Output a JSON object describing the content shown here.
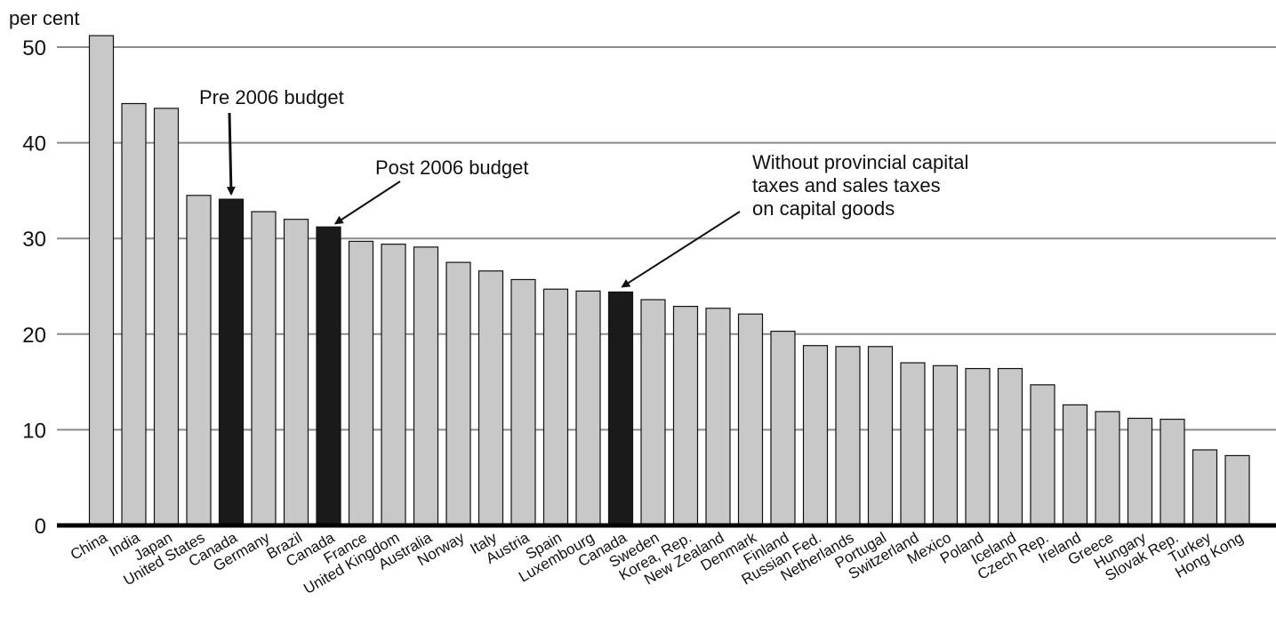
{
  "chart_data": {
    "type": "bar",
    "y_unit_label": "per cent",
    "ylim": [
      0,
      50
    ],
    "yticks": [
      0,
      10,
      20,
      30,
      40,
      50
    ],
    "grid": true,
    "categories": [
      "China",
      "India",
      "Japan",
      "United States",
      "Canada",
      "Germany",
      "Brazil",
      "Canada",
      "France",
      "United Kingdom",
      "Australia",
      "Norway",
      "Italy",
      "Austria",
      "Spain",
      "Luxembourg",
      "Canada",
      "Sweden",
      "Korea, Rep.",
      "New Zealand",
      "Denmark",
      "Finland",
      "Russian Fed.",
      "Netherlands",
      "Portugal",
      "Switzerland",
      "Mexico",
      "Poland",
      "Iceland",
      "Czech Rep.",
      "Ireland",
      "Greece",
      "Hungary",
      "Slovak Rep.",
      "Turkey",
      "Hong Kong"
    ],
    "values": [
      51.2,
      44.1,
      43.6,
      34.5,
      34.1,
      32.8,
      32.0,
      31.2,
      29.7,
      29.4,
      29.1,
      27.5,
      26.6,
      25.7,
      24.7,
      24.5,
      24.4,
      23.6,
      22.9,
      22.7,
      22.1,
      20.3,
      18.8,
      18.7,
      18.7,
      17.0,
      16.7,
      16.4,
      16.4,
      14.7,
      12.6,
      11.9,
      11.2,
      11.1,
      7.9,
      7.3
    ],
    "highlighted_indices": [
      4,
      7,
      16
    ],
    "colors": {
      "bar": "#c8c8c8",
      "highlight": "#1a1a1a",
      "grid": "#8a8a8a",
      "axis": "#000000"
    },
    "annotations": [
      {
        "target_index": 4,
        "lines": [
          "Pre 2006 budget"
        ]
      },
      {
        "target_index": 7,
        "lines": [
          "Post 2006 budget"
        ]
      },
      {
        "target_index": 16,
        "lines": [
          "Without provincial capital",
          "taxes and sales taxes",
          "on capital goods"
        ]
      }
    ]
  }
}
